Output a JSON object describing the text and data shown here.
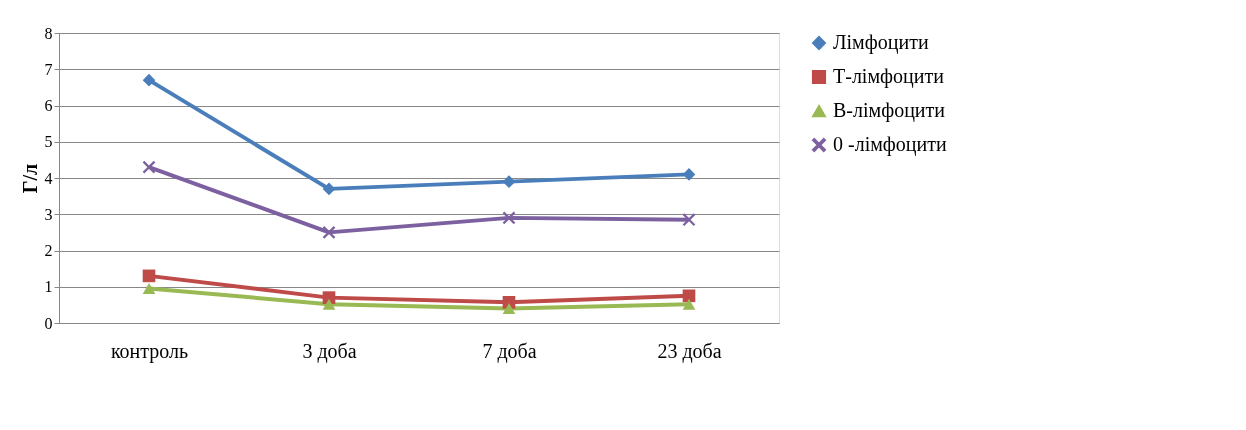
{
  "chart_data": {
    "type": "line",
    "ylabel": "Г/л",
    "categories": [
      "контроль",
      "3 доба",
      "7 доба",
      "23 доба"
    ],
    "ylim": [
      0,
      8
    ],
    "yticks": [
      0,
      1,
      2,
      3,
      4,
      5,
      6,
      7,
      8
    ],
    "grid": "y",
    "legend": "right",
    "series": [
      {
        "name": "Лімфоцити",
        "color": "#4a7ebb",
        "marker": "diamond",
        "values": [
          6.7,
          3.7,
          3.9,
          4.1
        ]
      },
      {
        "name": "Т-лімфоцити",
        "color": "#be4b48",
        "marker": "square",
        "values": [
          1.3,
          0.7,
          0.57,
          0.75
        ]
      },
      {
        "name": "В-лімфоцити",
        "color": "#98b954",
        "marker": "triangle",
        "values": [
          0.95,
          0.52,
          0.4,
          0.52
        ]
      },
      {
        "name": "0 -лімфоцити",
        "color": "#7d60a0",
        "marker": "cross",
        "values": [
          4.3,
          2.5,
          2.9,
          2.85
        ]
      }
    ]
  }
}
